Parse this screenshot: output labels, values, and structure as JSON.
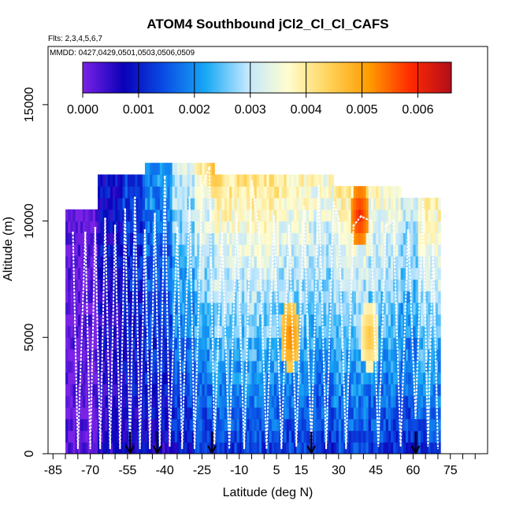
{
  "chart_data": {
    "type": "heatmap",
    "title": "ATOM4 Southbound jCl2_Cl_Cl_CAFS",
    "flights_text": "Flts: 2,3,4,5,6,7",
    "mmdd_text": "MMDD: 0427,0429,0501,0503,0506,0509",
    "xlabel": "Latitude (deg N)",
    "ylabel": "Altitude (m)",
    "xlim": [
      -87,
      90
    ],
    "ylim": [
      0,
      17500
    ],
    "x_ticks": [
      -85,
      -70,
      -55,
      -40,
      -25,
      -10,
      5,
      15,
      30,
      45,
      60,
      75
    ],
    "x_tick_labels": [
      "-85",
      "-70",
      "-55",
      "-40",
      "-25",
      "-10",
      "5",
      "15",
      "30",
      "45",
      "60",
      "75"
    ],
    "x_minor_ticks": [
      -80,
      -75,
      -65,
      -60,
      -50,
      -45,
      -35,
      -30,
      -20,
      -15,
      -5,
      0,
      10,
      20,
      25,
      35,
      40,
      50,
      55,
      65,
      70,
      80,
      85
    ],
    "y_ticks": [
      0,
      5000,
      10000,
      15000
    ],
    "y_tick_labels": [
      "0",
      "5000",
      "10000",
      "15000"
    ],
    "colorbar": {
      "min": 0,
      "max": 0.0066,
      "ticks": [
        0.0,
        0.001,
        0.002,
        0.003,
        0.004,
        0.005,
        0.006
      ],
      "tick_labels": [
        "0.000",
        "0.001",
        "0.002",
        "0.003",
        "0.004",
        "0.005",
        "0.006"
      ],
      "stops": [
        "#7b22e6",
        "#0a00b8",
        "#0a4ee6",
        "#17a8f5",
        "#bfe6ff",
        "#fffdd0",
        "#ffd35a",
        "#ff9b00",
        "#ff2a00",
        "#b30e1b"
      ]
    },
    "profile_markers_lat": [
      -54,
      -43,
      -21,
      19,
      61
    ],
    "latitude_bands": [
      {
        "lat_start": -80,
        "lat_end": -67,
        "alt_top": 10500,
        "value": 0.0001
      },
      {
        "lat_start": -67,
        "lat_end": -57,
        "alt_top": 11600,
        "value": 0.0008
      },
      {
        "lat_start": -57,
        "lat_end": -48,
        "alt_top": 12000,
        "value": 0.0012
      },
      {
        "lat_start": -48,
        "lat_end": -37,
        "alt_top": 12400,
        "value": 0.0021
      },
      {
        "lat_start": -37,
        "lat_end": -28,
        "alt_top": 12400,
        "value": 0.003
      },
      {
        "lat_start": -28,
        "lat_end": -20,
        "alt_top": 12500,
        "value": 0.0036
      },
      {
        "lat_start": -20,
        "lat_end": -8,
        "alt_top": 12000,
        "value": 0.004
      },
      {
        "lat_start": -8,
        "lat_end": 6,
        "alt_top": 11800,
        "value": 0.004
      },
      {
        "lat_start": 6,
        "lat_end": 18,
        "alt_top": 11800,
        "value": 0.0038
      },
      {
        "lat_start": 18,
        "lat_end": 28,
        "alt_top": 11800,
        "value": 0.0036
      },
      {
        "lat_start": 28,
        "lat_end": 42,
        "alt_top": 11200,
        "value": 0.004
      },
      {
        "lat_start": 42,
        "lat_end": 55,
        "alt_top": 11200,
        "value": 0.0037
      },
      {
        "lat_start": 55,
        "lat_end": 62,
        "alt_top": 11000,
        "value": 0.0033
      },
      {
        "lat_start": 62,
        "lat_end": 71,
        "alt_top": 11000,
        "value": 0.004
      }
    ],
    "hotspots": [
      {
        "lat": 10,
        "alt": 4800,
        "value": 0.0054
      },
      {
        "lat": 38,
        "alt": 10000,
        "value": 0.006
      },
      {
        "lat": 42,
        "alt": 4800,
        "value": 0.0047
      },
      {
        "lat": -20,
        "alt": 12200,
        "value": 0.005
      }
    ],
    "flight_track": [
      [
        -77,
        9500
      ],
      [
        -75,
        200
      ],
      [
        -72,
        9500
      ],
      [
        -70,
        200
      ],
      [
        -68,
        9700
      ],
      [
        -66,
        200
      ],
      [
        -64,
        10100
      ],
      [
        -62,
        200
      ],
      [
        -60,
        9800
      ],
      [
        -58,
        200
      ],
      [
        -56,
        10500
      ],
      [
        -54,
        200
      ],
      [
        -52,
        11000
      ],
      [
        -50,
        200
      ],
      [
        -48,
        9600
      ],
      [
        -46,
        200
      ],
      [
        -44,
        10300
      ],
      [
        -42,
        300
      ],
      [
        -40,
        11900
      ],
      [
        -38,
        300
      ],
      [
        -35,
        9700
      ],
      [
        -33,
        200
      ],
      [
        -30,
        11000
      ],
      [
        -28,
        200
      ],
      [
        -25,
        11500
      ],
      [
        -22,
        12300
      ],
      [
        -20,
        400
      ],
      [
        -17,
        9500
      ],
      [
        -14,
        200
      ],
      [
        -11,
        10300
      ],
      [
        -8,
        200
      ],
      [
        -5,
        11700
      ],
      [
        -2,
        9500
      ],
      [
        1,
        200
      ],
      [
        4,
        10200
      ],
      [
        7,
        200
      ],
      [
        10,
        9800
      ],
      [
        13,
        300
      ],
      [
        16,
        10600
      ],
      [
        19,
        300
      ],
      [
        22,
        11500
      ],
      [
        25,
        200
      ],
      [
        28,
        10800
      ],
      [
        30,
        10100
      ],
      [
        33,
        200
      ],
      [
        36,
        9800
      ],
      [
        39,
        10200
      ],
      [
        43,
        10000
      ],
      [
        46,
        300
      ],
      [
        49,
        9800
      ],
      [
        52,
        10000
      ],
      [
        55,
        300
      ],
      [
        58,
        9600
      ],
      [
        61,
        1500
      ],
      [
        64,
        10800
      ],
      [
        66,
        300
      ],
      [
        68,
        9000
      ],
      [
        70,
        200
      ]
    ]
  }
}
